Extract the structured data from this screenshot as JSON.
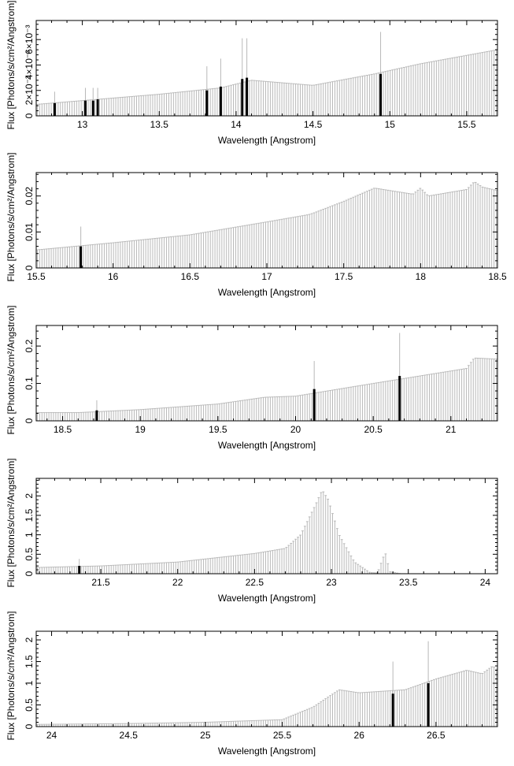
{
  "chart_data": [
    {
      "type": "bar",
      "xlabel": "Wavelength [Angstrom]",
      "ylabel": "Flux [Photons/s/cm²/Angstrom]",
      "xlim": [
        12.7,
        15.7
      ],
      "ylim": [
        0,
        0.0075
      ],
      "xticks": [
        13,
        13.5,
        14,
        14.5,
        15,
        15.5
      ],
      "xtick_labels": [
        "13",
        "13.5",
        "14",
        "14.5",
        "15",
        "15.5"
      ],
      "yticks": [
        0,
        0.002,
        0.004,
        0.006
      ],
      "ytick_labels": [
        "0",
        "2×10⁻³",
        "4×10⁻³",
        "6×10⁻³"
      ],
      "continuum": [
        [
          12.7,
          0.0009
        ],
        [
          13.0,
          0.0012
        ],
        [
          13.5,
          0.0017
        ],
        [
          13.9,
          0.0022
        ],
        [
          14.1,
          0.0028
        ],
        [
          14.5,
          0.0024
        ],
        [
          14.9,
          0.0033
        ],
        [
          15.2,
          0.0041
        ],
        [
          15.7,
          0.0052
        ]
      ],
      "lines": [
        {
          "x": 12.82,
          "y": 0.001,
          "err": 0.0019
        },
        {
          "x": 13.02,
          "y": 0.0012,
          "err": 0.0022
        },
        {
          "x": 13.07,
          "y": 0.0012,
          "err": 0.0022
        },
        {
          "x": 13.1,
          "y": 0.0013,
          "err": 0.0022
        },
        {
          "x": 13.81,
          "y": 0.002,
          "err": 0.0039
        },
        {
          "x": 13.9,
          "y": 0.0023,
          "err": 0.0045
        },
        {
          "x": 14.04,
          "y": 0.0029,
          "err": 0.0061
        },
        {
          "x": 14.07,
          "y": 0.003,
          "err": 0.0061
        },
        {
          "x": 14.94,
          "y": 0.0033,
          "err": 0.0066
        }
      ]
    },
    {
      "type": "bar",
      "xlabel": "Wavelength [Angstrom]",
      "ylabel": "Flux [Photons/s/cm²/Angstrom]",
      "xlim": [
        15.5,
        18.5
      ],
      "ylim": [
        0,
        0.0265
      ],
      "xticks": [
        15.5,
        16,
        16.5,
        17,
        17.5,
        18,
        18.5
      ],
      "xtick_labels": [
        "15.5",
        "16",
        "16.5",
        "17",
        "17.5",
        "18",
        "18.5"
      ],
      "yticks": [
        0,
        0.01,
        0.02
      ],
      "ytick_labels": [
        "0",
        "0.01",
        "0.02"
      ],
      "continuum": [
        [
          15.5,
          0.005
        ],
        [
          16.0,
          0.007
        ],
        [
          16.5,
          0.0092
        ],
        [
          17.0,
          0.0128
        ],
        [
          17.27,
          0.0148
        ],
        [
          17.3,
          0.0152
        ],
        [
          17.5,
          0.0185
        ],
        [
          17.7,
          0.0222
        ],
        [
          17.95,
          0.0205
        ],
        [
          18.0,
          0.0222
        ],
        [
          18.05,
          0.02
        ],
        [
          18.3,
          0.0218
        ],
        [
          18.35,
          0.024
        ],
        [
          18.4,
          0.0225
        ],
        [
          18.5,
          0.0215
        ]
      ],
      "lines": [
        {
          "x": 15.79,
          "y": 0.006,
          "err": 0.0115
        }
      ]
    },
    {
      "type": "bar",
      "xlabel": "Wavelength [Angstrom]",
      "ylabel": "Flux [Photons/s/cm²/Angstrom]",
      "xlim": [
        18.33,
        21.3
      ],
      "ylim": [
        0,
        0.255
      ],
      "xticks": [
        18.5,
        19,
        19.5,
        20,
        20.5,
        21
      ],
      "xtick_labels": [
        "18.5",
        "19",
        "19.5",
        "20",
        "20.5",
        "21"
      ],
      "yticks": [
        0,
        0.1,
        0.2
      ],
      "ytick_labels": [
        "0",
        "0.1",
        "0.2"
      ],
      "continuum": [
        [
          18.33,
          0.022
        ],
        [
          18.6,
          0.022
        ],
        [
          19.0,
          0.03
        ],
        [
          19.5,
          0.045
        ],
        [
          19.8,
          0.063
        ],
        [
          20.0,
          0.066
        ],
        [
          20.5,
          0.1
        ],
        [
          20.8,
          0.12
        ],
        [
          21.1,
          0.14
        ],
        [
          21.15,
          0.168
        ],
        [
          21.3,
          0.165
        ]
      ],
      "lines": [
        {
          "x": 18.72,
          "y": 0.028,
          "err": 0.055
        },
        {
          "x": 20.12,
          "y": 0.085,
          "err": 0.16
        },
        {
          "x": 20.67,
          "y": 0.12,
          "err": 0.235
        }
      ]
    },
    {
      "type": "bar",
      "xlabel": "Wavelength [Angstrom]",
      "ylabel": "Flux [Photons/s/cm²/Angstrom]",
      "xlim": [
        21.08,
        24.08
      ],
      "ylim": [
        0,
        2.45
      ],
      "xticks": [
        21.5,
        22,
        22.5,
        23,
        23.5,
        24
      ],
      "xtick_labels": [
        "21.5",
        "22",
        "22.5",
        "23",
        "23.5",
        "24"
      ],
      "yticks": [
        0,
        0.5,
        1,
        1.5,
        2
      ],
      "ytick_labels": [
        "0",
        "0.5",
        "1",
        "1.5",
        "2"
      ],
      "continuum": [
        [
          21.08,
          0.16
        ],
        [
          21.5,
          0.2
        ],
        [
          22.0,
          0.3
        ],
        [
          22.5,
          0.52
        ],
        [
          22.7,
          0.65
        ],
        [
          22.8,
          1.0
        ],
        [
          22.9,
          1.8
        ],
        [
          22.94,
          2.15
        ],
        [
          22.98,
          1.9
        ],
        [
          23.05,
          1.0
        ],
        [
          23.15,
          0.3
        ],
        [
          23.25,
          0.03
        ],
        [
          23.3,
          0.02
        ],
        [
          23.33,
          0.35
        ],
        [
          23.35,
          0.55
        ],
        [
          23.38,
          0.05
        ],
        [
          23.45,
          0.0
        ],
        [
          24.08,
          0.0
        ]
      ],
      "lines": [
        {
          "x": 21.36,
          "y": 0.2,
          "err": 0.38
        }
      ]
    },
    {
      "type": "bar",
      "xlabel": "Wavelength [Angstrom]",
      "ylabel": "Flux [Photons/s/cm²/Angstrom]",
      "xlim": [
        23.9,
        26.9
      ],
      "ylim": [
        0,
        2.2
      ],
      "xticks": [
        24,
        24.5,
        25,
        25.5,
        26,
        26.5
      ],
      "xtick_labels": [
        "24",
        "24.5",
        "25",
        "25.5",
        "26",
        "26.5"
      ],
      "yticks": [
        0,
        0.5,
        1,
        1.5,
        2
      ],
      "ytick_labels": [
        "0",
        "0.5",
        "1",
        "1.5",
        "2"
      ],
      "continuum": [
        [
          23.9,
          0.05
        ],
        [
          24.5,
          0.07
        ],
        [
          25.0,
          0.1
        ],
        [
          25.5,
          0.16
        ],
        [
          25.7,
          0.45
        ],
        [
          25.87,
          0.85
        ],
        [
          26.0,
          0.78
        ],
        [
          26.3,
          0.85
        ],
        [
          26.5,
          1.1
        ],
        [
          26.7,
          1.3
        ],
        [
          26.8,
          1.22
        ],
        [
          26.87,
          1.4
        ],
        [
          26.9,
          1.3
        ]
      ],
      "lines": [
        {
          "x": 26.22,
          "y": 0.76,
          "err": 1.5
        },
        {
          "x": 26.45,
          "y": 1.0,
          "err": 1.97
        }
      ]
    }
  ]
}
